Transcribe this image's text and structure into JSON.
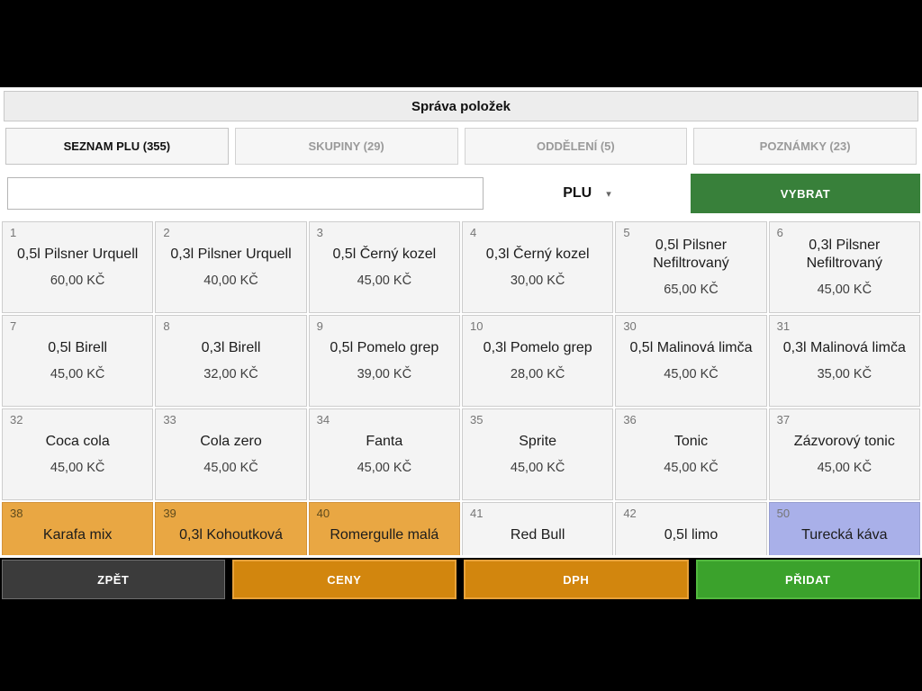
{
  "header": {
    "title": "Správa položek"
  },
  "tabs": [
    {
      "label": "SEZNAM PLU (355)",
      "active": true
    },
    {
      "label": "SKUPINY (29)",
      "active": false
    },
    {
      "label": "ODDĚLENÍ (5)",
      "active": false
    },
    {
      "label": "POZNÁMKY (23)",
      "active": false
    }
  ],
  "search": {
    "value": "",
    "placeholder": "",
    "filter_label": "PLU",
    "caret_icon": "▾",
    "select_button": "VYBRAT"
  },
  "items": [
    {
      "id": "1",
      "name": "0,5l Pilsner Urquell",
      "price": "60,00 KČ",
      "color": "default"
    },
    {
      "id": "2",
      "name": "0,3l Pilsner Urquell",
      "price": "40,00 KČ",
      "color": "default"
    },
    {
      "id": "3",
      "name": "0,5l Černý kozel",
      "price": "45,00 KČ",
      "color": "default"
    },
    {
      "id": "4",
      "name": "0,3l Černý kozel",
      "price": "30,00 KČ",
      "color": "default"
    },
    {
      "id": "5",
      "name": "0,5l Pilsner Nefiltrovaný",
      "price": "65,00 KČ",
      "color": "default"
    },
    {
      "id": "6",
      "name": "0,3l Pilsner Nefiltrovaný",
      "price": "45,00 KČ",
      "color": "default"
    },
    {
      "id": "7",
      "name": "0,5l Birell",
      "price": "45,00 KČ",
      "color": "default"
    },
    {
      "id": "8",
      "name": "0,3l Birell",
      "price": "32,00 KČ",
      "color": "default"
    },
    {
      "id": "9",
      "name": "0,5l Pomelo grep",
      "price": "39,00 KČ",
      "color": "default"
    },
    {
      "id": "10",
      "name": "0,3l Pomelo grep",
      "price": "28,00 KČ",
      "color": "default"
    },
    {
      "id": "30",
      "name": "0,5l Malinová limča",
      "price": "45,00 KČ",
      "color": "default"
    },
    {
      "id": "31",
      "name": "0,3l Malinová limča",
      "price": "35,00 KČ",
      "color": "default"
    },
    {
      "id": "32",
      "name": "Coca cola",
      "price": "45,00 KČ",
      "color": "default"
    },
    {
      "id": "33",
      "name": "Cola zero",
      "price": "45,00 KČ",
      "color": "default"
    },
    {
      "id": "34",
      "name": "Fanta",
      "price": "45,00 KČ",
      "color": "default"
    },
    {
      "id": "35",
      "name": "Sprite",
      "price": "45,00 KČ",
      "color": "default"
    },
    {
      "id": "36",
      "name": "Tonic",
      "price": "45,00 KČ",
      "color": "default"
    },
    {
      "id": "37",
      "name": "Zázvorový tonic",
      "price": "45,00 KČ",
      "color": "default"
    },
    {
      "id": "38",
      "name": "Karafa mix",
      "price": "",
      "color": "orange"
    },
    {
      "id": "39",
      "name": "0,3l Kohoutková",
      "price": "",
      "color": "orange"
    },
    {
      "id": "40",
      "name": "Romergulle malá",
      "price": "",
      "color": "orange"
    },
    {
      "id": "41",
      "name": "Red Bull",
      "price": "",
      "color": "default"
    },
    {
      "id": "42",
      "name": "0,5l limo",
      "price": "",
      "color": "default"
    },
    {
      "id": "50",
      "name": "Turecká káva",
      "price": "",
      "color": "purple"
    }
  ],
  "toolbar": {
    "back": "ZPĚT",
    "prices": "CENY",
    "vat": "DPH",
    "add": "PŘIDAT"
  },
  "colors": {
    "select_green": "#38803a",
    "add_green": "#3ba22c",
    "toolbar_orange": "#d2860e",
    "tile_orange": "#e9a743",
    "tile_purple": "#a9b0e9",
    "back_gray": "#3b3b3b"
  }
}
